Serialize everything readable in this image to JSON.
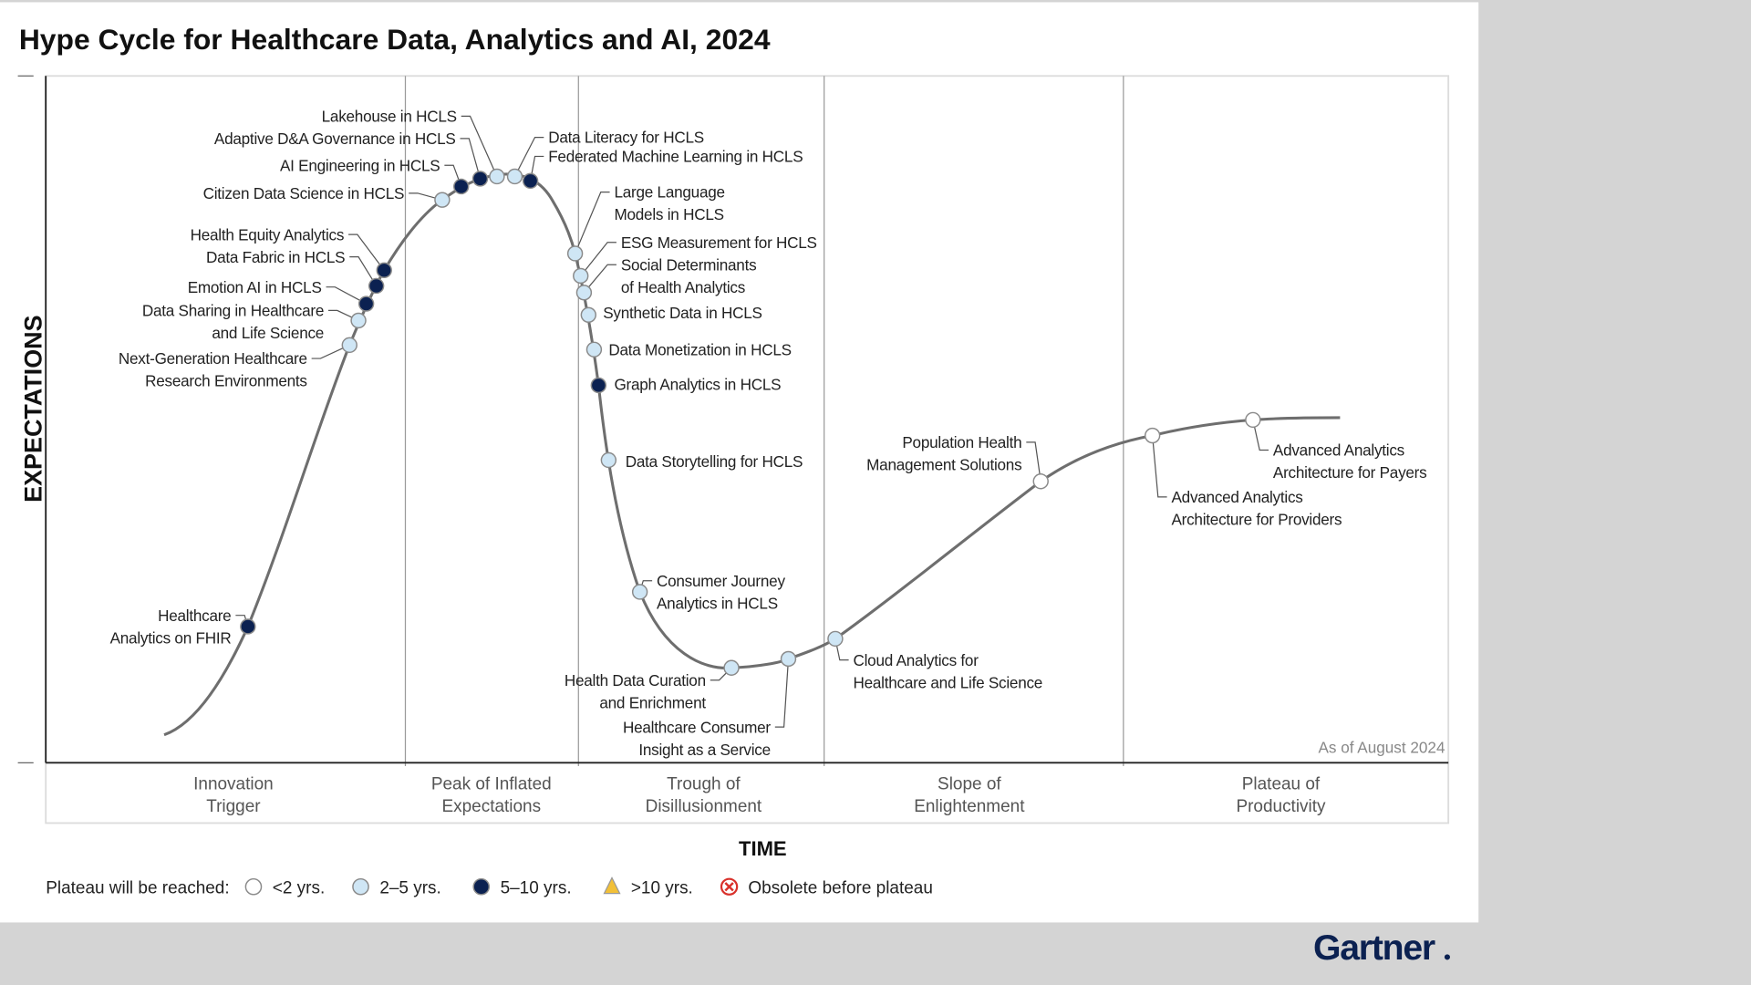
{
  "title": "Hype Cycle for Healthcare Data, Analytics and AI, 2024",
  "y_axis_label": "EXPECTATIONS",
  "x_axis_label": "TIME",
  "as_of": "As of August 2024",
  "phases": [
    [
      "Innovation",
      "Trigger"
    ],
    [
      "Peak of Inflated",
      "Expectations"
    ],
    [
      "Trough of",
      "Disillusionment"
    ],
    [
      "Slope of",
      "Enlightenment"
    ],
    [
      "Plateau of",
      "Productivity"
    ]
  ],
  "legend": {
    "label": "Plateau will be reached:",
    "items": [
      {
        "key": "lt2",
        "text": "<2 yrs."
      },
      {
        "key": "2to5",
        "text": "2–5 yrs."
      },
      {
        "key": "5to10",
        "text": "5–10 yrs."
      },
      {
        "key": "gt10",
        "text": ">10 yrs."
      },
      {
        "key": "obsolete",
        "text": "Obsolete before plateau"
      }
    ]
  },
  "colors": {
    "lt2": "#ffffff",
    "2to5": "#cfe6f5",
    "5to10": "#0b2151",
    "gt10": "#f2c037",
    "obsolete": "#d9312b",
    "curve": "#6e6e6e",
    "logo": "#0b2151"
  },
  "logo": "Gartner",
  "items": [
    {
      "lines": [
        "Healthcare",
        "Analytics on FHIR"
      ],
      "status": "5to10"
    },
    {
      "lines": [
        "Next-Generation Healthcare",
        "Research Environments"
      ],
      "status": "2to5"
    },
    {
      "lines": [
        "Data Sharing in Healthcare",
        "and Life Science"
      ],
      "status": "2to5"
    },
    {
      "lines": [
        "Emotion AI in HCLS"
      ],
      "status": "5to10"
    },
    {
      "lines": [
        "Data Fabric in HCLS"
      ],
      "status": "5to10"
    },
    {
      "lines": [
        "Health Equity Analytics"
      ],
      "status": "5to10"
    },
    {
      "lines": [
        "Citizen Data Science in HCLS"
      ],
      "status": "2to5"
    },
    {
      "lines": [
        "AI Engineering in HCLS"
      ],
      "status": "5to10"
    },
    {
      "lines": [
        "Adaptive D&A Governance in HCLS"
      ],
      "status": "5to10"
    },
    {
      "lines": [
        "Lakehouse  in HCLS"
      ],
      "status": "2to5"
    },
    {
      "lines": [
        "Data Literacy for HCLS"
      ],
      "status": "2to5"
    },
    {
      "lines": [
        "Federated Machine Learning in HCLS"
      ],
      "status": "5to10"
    },
    {
      "lines": [
        "Large Language",
        "Models in HCLS"
      ],
      "status": "2to5"
    },
    {
      "lines": [
        "ESG Measurement for HCLS"
      ],
      "status": "2to5"
    },
    {
      "lines": [
        "Social Determinants",
        "of Health Analytics"
      ],
      "status": "2to5"
    },
    {
      "lines": [
        "Synthetic Data in HCLS"
      ],
      "status": "2to5"
    },
    {
      "lines": [
        "Data Monetization in HCLS"
      ],
      "status": "2to5"
    },
    {
      "lines": [
        "Graph Analytics in HCLS"
      ],
      "status": "5to10"
    },
    {
      "lines": [
        "Data Storytelling for HCLS"
      ],
      "status": "2to5"
    },
    {
      "lines": [
        "Consumer Journey",
        "Analytics in HCLS"
      ],
      "status": "2to5"
    },
    {
      "lines": [
        "Health Data Curation",
        "and Enrichment"
      ],
      "status": "2to5"
    },
    {
      "lines": [
        "Healthcare Consumer",
        "Insight as a Service"
      ],
      "status": "2to5"
    },
    {
      "lines": [
        "Cloud Analytics for",
        "Healthcare and Life Science"
      ],
      "status": "2to5"
    },
    {
      "lines": [
        "Population Health",
        "Management Solutions"
      ],
      "status": "lt2"
    },
    {
      "lines": [
        "Advanced Analytics",
        "Architecture for Providers"
      ],
      "status": "lt2"
    },
    {
      "lines": [
        "Advanced Analytics",
        "Architecture for Payers"
      ],
      "status": "lt2"
    }
  ]
}
